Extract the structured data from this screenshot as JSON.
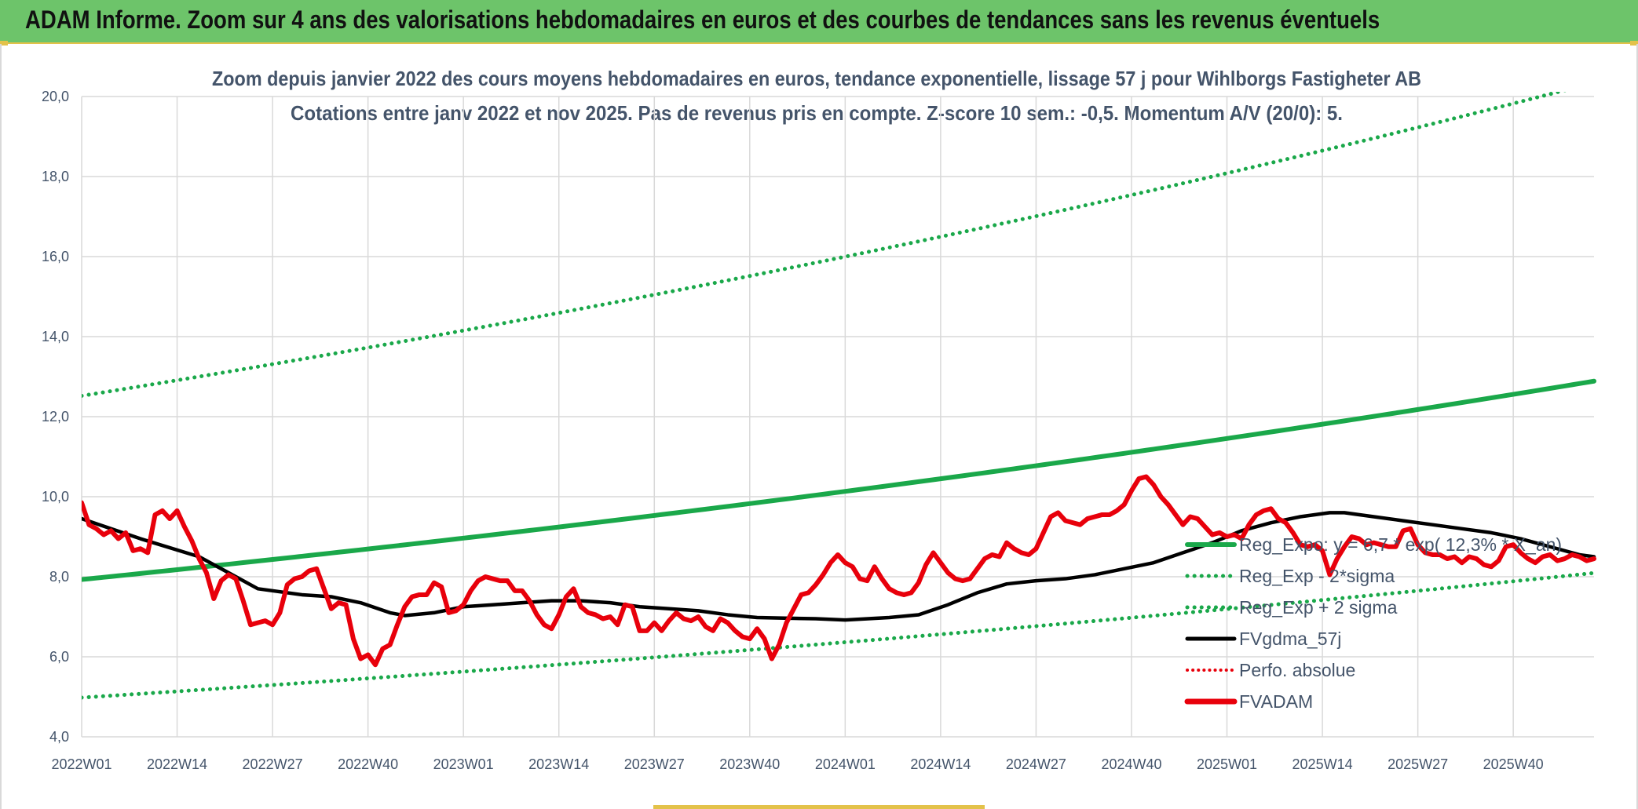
{
  "page": {
    "banner_title": "ADAM Informe. Zoom sur 4 ans des valorisations hebdomadaires en euros et des courbes de tendances sans les revenus éventuels"
  },
  "colors": {
    "banner": "#6dc46a",
    "accent": "#e3c24a",
    "trend_green": "#1aa84a",
    "moving_average": "#000000",
    "price": "#e8000b",
    "perfo": "#e8000b",
    "grid": "#d9d9d9",
    "text": "#44546a"
  },
  "chart_data": {
    "type": "line",
    "title_line1": "Zoom depuis janvier 2022 des cours moyens hebdomadaires en euros, tendance exponentielle, lissage 57 j pour Wihlborgs Fastigheter AB",
    "title_line2": "Cotations entre janv 2022 et nov 2025. Pas de revenus pris en compte. Z-score 10 sem.: -0,5. Momentum A/V (20/0): 5.",
    "ylim": [
      4.0,
      20.0
    ],
    "y_ticks": [
      "4,0",
      "6,0",
      "8,0",
      "10,0",
      "12,0",
      "14,0",
      "16,0",
      "18,0",
      "20,0"
    ],
    "x_tick_labels": [
      "2022W01",
      "2022W14",
      "2022W27",
      "2022W40",
      "2023W01",
      "2023W14",
      "2023W27",
      "2023W40",
      "2024W01",
      "2024W14",
      "2024W27",
      "2024W40",
      "2025W01",
      "2025W14",
      "2025W27",
      "2025W40"
    ],
    "weeks_per_tick": 13,
    "total_weeks": 206,
    "grid": true,
    "legend_position": "right-inside",
    "series": [
      {
        "name": "Reg_Expo: y = 6,7 * exp( 12,3% * X_an)",
        "kind": "reg",
        "style": "solid",
        "a": 7.93,
        "rate": 0.123,
        "weeks_per_year": 52.18
      },
      {
        "name": "Reg_Exp - 2*sigma",
        "kind": "reg",
        "style": "dotted",
        "a": 4.98,
        "rate": 0.123,
        "weeks_per_year": 52.18
      },
      {
        "name": "Reg_Exp + 2 sigma",
        "kind": "reg",
        "style": "dotted",
        "a": 12.52,
        "rate": 0.123,
        "weeks_per_year": 52.18
      },
      {
        "name": "FVgdma_57j",
        "kind": "data",
        "style": "solid",
        "points": [
          [
            0,
            9.45
          ],
          [
            8,
            8.95
          ],
          [
            16,
            8.5
          ],
          [
            20,
            8.1
          ],
          [
            24,
            7.7
          ],
          [
            30,
            7.55
          ],
          [
            34,
            7.5
          ],
          [
            38,
            7.35
          ],
          [
            42,
            7.1
          ],
          [
            44,
            7.03
          ],
          [
            48,
            7.1
          ],
          [
            52,
            7.25
          ],
          [
            56,
            7.3
          ],
          [
            60,
            7.35
          ],
          [
            64,
            7.4
          ],
          [
            68,
            7.4
          ],
          [
            72,
            7.35
          ],
          [
            76,
            7.25
          ],
          [
            80,
            7.2
          ],
          [
            84,
            7.15
          ],
          [
            88,
            7.05
          ],
          [
            92,
            6.98
          ],
          [
            100,
            6.95
          ],
          [
            104,
            6.92
          ],
          [
            110,
            6.98
          ],
          [
            114,
            7.05
          ],
          [
            118,
            7.3
          ],
          [
            122,
            7.6
          ],
          [
            126,
            7.82
          ],
          [
            130,
            7.9
          ],
          [
            134,
            7.95
          ],
          [
            138,
            8.05
          ],
          [
            142,
            8.2
          ],
          [
            146,
            8.35
          ],
          [
            150,
            8.6
          ],
          [
            154,
            8.85
          ],
          [
            158,
            9.15
          ],
          [
            162,
            9.35
          ],
          [
            166,
            9.5
          ],
          [
            170,
            9.6
          ],
          [
            172,
            9.6
          ],
          [
            176,
            9.5
          ],
          [
            180,
            9.4
          ],
          [
            184,
            9.3
          ],
          [
            188,
            9.2
          ],
          [
            192,
            9.1
          ],
          [
            196,
            8.95
          ],
          [
            200,
            8.75
          ],
          [
            204,
            8.55
          ],
          [
            206,
            8.5
          ]
        ]
      },
      {
        "name": "Perfo. absolue",
        "kind": "none",
        "style": "dotted"
      },
      {
        "name": "FVADAM",
        "kind": "data",
        "style": "solid-thick",
        "points": [
          [
            0,
            9.85
          ],
          [
            1,
            9.3
          ],
          [
            2,
            9.2
          ],
          [
            3,
            9.05
          ],
          [
            4,
            9.15
          ],
          [
            5,
            8.95
          ],
          [
            6,
            9.1
          ],
          [
            7,
            8.65
          ],
          [
            8,
            8.7
          ],
          [
            9,
            8.6
          ],
          [
            10,
            9.55
          ],
          [
            11,
            9.65
          ],
          [
            12,
            9.45
          ],
          [
            13,
            9.65
          ],
          [
            14,
            9.25
          ],
          [
            15,
            8.9
          ],
          [
            16,
            8.45
          ],
          [
            17,
            8.1
          ],
          [
            18,
            7.45
          ],
          [
            19,
            7.9
          ],
          [
            20,
            8.05
          ],
          [
            21,
            7.95
          ],
          [
            22,
            7.4
          ],
          [
            23,
            6.8
          ],
          [
            24,
            6.85
          ],
          [
            25,
            6.9
          ],
          [
            26,
            6.8
          ],
          [
            27,
            7.1
          ],
          [
            28,
            7.8
          ],
          [
            29,
            7.95
          ],
          [
            30,
            8.0
          ],
          [
            31,
            8.15
          ],
          [
            32,
            8.2
          ],
          [
            33,
            7.7
          ],
          [
            34,
            7.2
          ],
          [
            35,
            7.35
          ],
          [
            36,
            7.3
          ],
          [
            37,
            6.45
          ],
          [
            38,
            5.95
          ],
          [
            39,
            6.05
          ],
          [
            40,
            5.8
          ],
          [
            41,
            6.2
          ],
          [
            42,
            6.3
          ],
          [
            43,
            6.8
          ],
          [
            44,
            7.25
          ],
          [
            45,
            7.5
          ],
          [
            46,
            7.55
          ],
          [
            47,
            7.55
          ],
          [
            48,
            7.85
          ],
          [
            49,
            7.75
          ],
          [
            50,
            7.1
          ],
          [
            51,
            7.15
          ],
          [
            52,
            7.3
          ],
          [
            53,
            7.65
          ],
          [
            54,
            7.9
          ],
          [
            55,
            8.0
          ],
          [
            56,
            7.95
          ],
          [
            57,
            7.9
          ],
          [
            58,
            7.9
          ],
          [
            59,
            7.65
          ],
          [
            60,
            7.65
          ],
          [
            61,
            7.4
          ],
          [
            62,
            7.05
          ],
          [
            63,
            6.8
          ],
          [
            64,
            6.7
          ],
          [
            65,
            7.05
          ],
          [
            66,
            7.5
          ],
          [
            67,
            7.7
          ],
          [
            68,
            7.25
          ],
          [
            69,
            7.1
          ],
          [
            70,
            7.05
          ],
          [
            71,
            6.95
          ],
          [
            72,
            7.0
          ],
          [
            73,
            6.8
          ],
          [
            74,
            7.3
          ],
          [
            75,
            7.25
          ],
          [
            76,
            6.65
          ],
          [
            77,
            6.65
          ],
          [
            78,
            6.85
          ],
          [
            79,
            6.65
          ],
          [
            80,
            6.9
          ],
          [
            81,
            7.1
          ],
          [
            82,
            6.95
          ],
          [
            83,
            6.9
          ],
          [
            84,
            7.0
          ],
          [
            85,
            6.75
          ],
          [
            86,
            6.65
          ],
          [
            87,
            6.95
          ],
          [
            88,
            6.85
          ],
          [
            89,
            6.65
          ],
          [
            90,
            6.5
          ],
          [
            91,
            6.45
          ],
          [
            92,
            6.7
          ],
          [
            93,
            6.45
          ],
          [
            94,
            5.95
          ],
          [
            95,
            6.3
          ],
          [
            96,
            6.85
          ],
          [
            97,
            7.2
          ],
          [
            98,
            7.55
          ],
          [
            99,
            7.6
          ],
          [
            100,
            7.8
          ],
          [
            101,
            8.05
          ],
          [
            102,
            8.35
          ],
          [
            103,
            8.55
          ],
          [
            104,
            8.35
          ],
          [
            105,
            8.25
          ],
          [
            106,
            7.95
          ],
          [
            107,
            7.9
          ],
          [
            108,
            8.25
          ],
          [
            109,
            7.95
          ],
          [
            110,
            7.7
          ],
          [
            111,
            7.6
          ],
          [
            112,
            7.55
          ],
          [
            113,
            7.6
          ],
          [
            114,
            7.85
          ],
          [
            115,
            8.3
          ],
          [
            116,
            8.6
          ],
          [
            117,
            8.35
          ],
          [
            118,
            8.1
          ],
          [
            119,
            7.95
          ],
          [
            120,
            7.9
          ],
          [
            121,
            7.95
          ],
          [
            122,
            8.2
          ],
          [
            123,
            8.45
          ],
          [
            124,
            8.55
          ],
          [
            125,
            8.5
          ],
          [
            126,
            8.85
          ],
          [
            127,
            8.7
          ],
          [
            128,
            8.6
          ],
          [
            129,
            8.55
          ],
          [
            130,
            8.7
          ],
          [
            131,
            9.1
          ],
          [
            132,
            9.5
          ],
          [
            133,
            9.6
          ],
          [
            134,
            9.4
          ],
          [
            135,
            9.35
          ],
          [
            136,
            9.3
          ],
          [
            137,
            9.45
          ],
          [
            138,
            9.5
          ],
          [
            139,
            9.55
          ],
          [
            140,
            9.55
          ],
          [
            141,
            9.65
          ],
          [
            142,
            9.8
          ],
          [
            143,
            10.15
          ],
          [
            144,
            10.45
          ],
          [
            145,
            10.5
          ],
          [
            146,
            10.3
          ],
          [
            147,
            10.0
          ],
          [
            148,
            9.8
          ],
          [
            149,
            9.55
          ],
          [
            150,
            9.3
          ],
          [
            151,
            9.5
          ],
          [
            152,
            9.45
          ],
          [
            153,
            9.25
          ],
          [
            154,
            9.05
          ],
          [
            155,
            9.1
          ],
          [
            156,
            9.0
          ],
          [
            157,
            9.05
          ],
          [
            158,
            8.95
          ],
          [
            159,
            9.3
          ],
          [
            160,
            9.55
          ],
          [
            161,
            9.65
          ],
          [
            162,
            9.7
          ],
          [
            163,
            9.45
          ],
          [
            164,
            9.35
          ],
          [
            165,
            9.1
          ],
          [
            166,
            8.8
          ],
          [
            167,
            8.75
          ],
          [
            168,
            8.8
          ],
          [
            169,
            8.65
          ],
          [
            170,
            8.05
          ],
          [
            171,
            8.45
          ],
          [
            172,
            8.75
          ],
          [
            173,
            9.0
          ],
          [
            174,
            8.95
          ],
          [
            175,
            8.8
          ],
          [
            176,
            8.85
          ],
          [
            177,
            8.8
          ],
          [
            178,
            8.75
          ],
          [
            179,
            8.75
          ],
          [
            180,
            9.15
          ],
          [
            181,
            9.2
          ],
          [
            182,
            8.8
          ],
          [
            183,
            8.6
          ],
          [
            184,
            8.55
          ],
          [
            185,
            8.55
          ],
          [
            186,
            8.45
          ],
          [
            187,
            8.5
          ],
          [
            188,
            8.35
          ],
          [
            189,
            8.5
          ],
          [
            190,
            8.45
          ],
          [
            191,
            8.3
          ],
          [
            192,
            8.25
          ],
          [
            193,
            8.4
          ],
          [
            194,
            8.75
          ],
          [
            195,
            8.8
          ],
          [
            196,
            8.6
          ],
          [
            197,
            8.45
          ],
          [
            198,
            8.35
          ],
          [
            199,
            8.5
          ],
          [
            200,
            8.55
          ],
          [
            201,
            8.4
          ],
          [
            202,
            8.45
          ],
          [
            203,
            8.55
          ],
          [
            204,
            8.5
          ],
          [
            205,
            8.4
          ],
          [
            206,
            8.45
          ]
        ]
      }
    ]
  }
}
